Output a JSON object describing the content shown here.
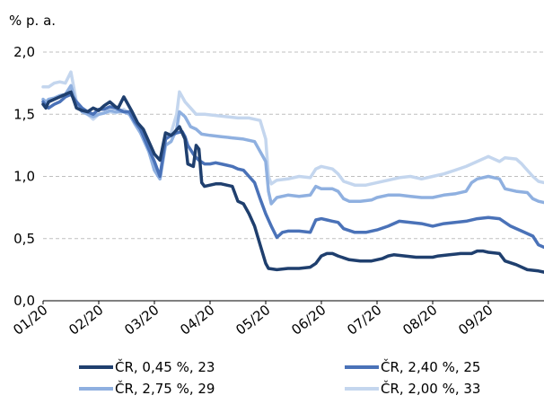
{
  "chart_data": {
    "type": "line",
    "ylabel": "% p. a.",
    "ylim": [
      0,
      2
    ],
    "y_ticks": [
      "0,0",
      "0,5",
      "1,0",
      "1,5",
      "2,0"
    ],
    "x_ticks": [
      "01/20",
      "02/20",
      "03/20",
      "04/20",
      "05/20",
      "06/20",
      "07/20",
      "08/20",
      "09/20"
    ],
    "x_tick_months": [
      1,
      2,
      3,
      4,
      5,
      6,
      7,
      8,
      9
    ],
    "x_range_months": [
      1,
      10.0
    ],
    "grid": true,
    "legend_position": "bottom",
    "series": [
      {
        "name": "ČR, 0,45 %, 23",
        "color": "#1f3f6e",
        "points": [
          [
            1.0,
            1.58
          ],
          [
            1.05,
            1.55
          ],
          [
            1.1,
            1.6
          ],
          [
            1.2,
            1.62
          ],
          [
            1.3,
            1.64
          ],
          [
            1.4,
            1.66
          ],
          [
            1.5,
            1.68
          ],
          [
            1.6,
            1.55
          ],
          [
            1.7,
            1.53
          ],
          [
            1.8,
            1.52
          ],
          [
            1.9,
            1.55
          ],
          [
            2.0,
            1.53
          ],
          [
            2.1,
            1.57
          ],
          [
            2.2,
            1.6
          ],
          [
            2.3,
            1.56
          ],
          [
            2.35,
            1.55
          ],
          [
            2.45,
            1.64
          ],
          [
            2.5,
            1.6
          ],
          [
            2.6,
            1.52
          ],
          [
            2.7,
            1.43
          ],
          [
            2.8,
            1.38
          ],
          [
            2.9,
            1.28
          ],
          [
            3.0,
            1.18
          ],
          [
            3.1,
            1.13
          ],
          [
            3.2,
            1.35
          ],
          [
            3.3,
            1.33
          ],
          [
            3.35,
            1.35
          ],
          [
            3.45,
            1.4
          ],
          [
            3.55,
            1.3
          ],
          [
            3.6,
            1.1
          ],
          [
            3.7,
            1.08
          ],
          [
            3.75,
            1.25
          ],
          [
            3.8,
            1.22
          ],
          [
            3.85,
            0.95
          ],
          [
            3.9,
            0.92
          ],
          [
            4.0,
            0.93
          ],
          [
            4.1,
            0.94
          ],
          [
            4.2,
            0.94
          ],
          [
            4.3,
            0.93
          ],
          [
            4.4,
            0.92
          ],
          [
            4.5,
            0.8
          ],
          [
            4.6,
            0.78
          ],
          [
            4.7,
            0.7
          ],
          [
            4.8,
            0.6
          ],
          [
            4.9,
            0.45
          ],
          [
            5.0,
            0.3
          ],
          [
            5.05,
            0.26
          ],
          [
            5.2,
            0.25
          ],
          [
            5.4,
            0.26
          ],
          [
            5.6,
            0.26
          ],
          [
            5.8,
            0.27
          ],
          [
            5.9,
            0.3
          ],
          [
            6.0,
            0.36
          ],
          [
            6.1,
            0.38
          ],
          [
            6.2,
            0.38
          ],
          [
            6.3,
            0.36
          ],
          [
            6.5,
            0.33
          ],
          [
            6.7,
            0.32
          ],
          [
            6.9,
            0.32
          ],
          [
            7.0,
            0.33
          ],
          [
            7.1,
            0.34
          ],
          [
            7.2,
            0.36
          ],
          [
            7.3,
            0.37
          ],
          [
            7.5,
            0.36
          ],
          [
            7.7,
            0.35
          ],
          [
            7.9,
            0.35
          ],
          [
            8.0,
            0.35
          ],
          [
            8.1,
            0.36
          ],
          [
            8.3,
            0.37
          ],
          [
            8.5,
            0.38
          ],
          [
            8.7,
            0.38
          ],
          [
            8.8,
            0.4
          ],
          [
            8.9,
            0.4
          ],
          [
            9.0,
            0.39
          ],
          [
            9.2,
            0.38
          ],
          [
            9.3,
            0.32
          ],
          [
            9.5,
            0.29
          ],
          [
            9.7,
            0.25
          ],
          [
            9.9,
            0.24
          ],
          [
            10.0,
            0.23
          ]
        ]
      },
      {
        "name": "ČR, 2,40 %, 25",
        "color": "#4a72b8",
        "points": [
          [
            1.0,
            1.6
          ],
          [
            1.05,
            1.57
          ],
          [
            1.1,
            1.55
          ],
          [
            1.2,
            1.58
          ],
          [
            1.3,
            1.6
          ],
          [
            1.4,
            1.64
          ],
          [
            1.5,
            1.66
          ],
          [
            1.6,
            1.6
          ],
          [
            1.7,
            1.55
          ],
          [
            1.8,
            1.52
          ],
          [
            1.9,
            1.5
          ],
          [
            2.0,
            1.54
          ],
          [
            2.1,
            1.54
          ],
          [
            2.2,
            1.56
          ],
          [
            2.3,
            1.55
          ],
          [
            2.45,
            1.52
          ],
          [
            2.55,
            1.52
          ],
          [
            2.65,
            1.44
          ],
          [
            2.75,
            1.38
          ],
          [
            2.9,
            1.22
          ],
          [
            3.0,
            1.12
          ],
          [
            3.1,
            1.0
          ],
          [
            3.2,
            1.3
          ],
          [
            3.3,
            1.33
          ],
          [
            3.4,
            1.35
          ],
          [
            3.5,
            1.36
          ],
          [
            3.55,
            1.32
          ],
          [
            3.6,
            1.25
          ],
          [
            3.7,
            1.18
          ],
          [
            3.75,
            1.15
          ],
          [
            3.8,
            1.13
          ],
          [
            3.9,
            1.1
          ],
          [
            4.0,
            1.1
          ],
          [
            4.1,
            1.11
          ],
          [
            4.2,
            1.1
          ],
          [
            4.3,
            1.09
          ],
          [
            4.4,
            1.08
          ],
          [
            4.5,
            1.06
          ],
          [
            4.6,
            1.05
          ],
          [
            4.7,
            1.0
          ],
          [
            4.8,
            0.95
          ],
          [
            4.9,
            0.82
          ],
          [
            5.0,
            0.7
          ],
          [
            5.1,
            0.6
          ],
          [
            5.2,
            0.51
          ],
          [
            5.3,
            0.55
          ],
          [
            5.4,
            0.56
          ],
          [
            5.6,
            0.56
          ],
          [
            5.8,
            0.55
          ],
          [
            5.9,
            0.65
          ],
          [
            6.0,
            0.66
          ],
          [
            6.1,
            0.65
          ],
          [
            6.2,
            0.64
          ],
          [
            6.3,
            0.63
          ],
          [
            6.4,
            0.58
          ],
          [
            6.6,
            0.55
          ],
          [
            6.8,
            0.55
          ],
          [
            7.0,
            0.57
          ],
          [
            7.2,
            0.6
          ],
          [
            7.4,
            0.64
          ],
          [
            7.6,
            0.63
          ],
          [
            7.8,
            0.62
          ],
          [
            8.0,
            0.6
          ],
          [
            8.2,
            0.62
          ],
          [
            8.4,
            0.63
          ],
          [
            8.6,
            0.64
          ],
          [
            8.8,
            0.66
          ],
          [
            9.0,
            0.67
          ],
          [
            9.2,
            0.66
          ],
          [
            9.4,
            0.6
          ],
          [
            9.6,
            0.56
          ],
          [
            9.8,
            0.52
          ],
          [
            9.9,
            0.45
          ],
          [
            10.0,
            0.43
          ]
        ]
      },
      {
        "name": "ČR, 2,75 %, 29",
        "color": "#8fb0e0",
        "points": [
          [
            1.0,
            1.62
          ],
          [
            1.05,
            1.6
          ],
          [
            1.1,
            1.62
          ],
          [
            1.2,
            1.63
          ],
          [
            1.3,
            1.65
          ],
          [
            1.4,
            1.66
          ],
          [
            1.5,
            1.73
          ],
          [
            1.6,
            1.58
          ],
          [
            1.7,
            1.52
          ],
          [
            1.8,
            1.5
          ],
          [
            1.9,
            1.48
          ],
          [
            2.0,
            1.5
          ],
          [
            2.1,
            1.51
          ],
          [
            2.2,
            1.53
          ],
          [
            2.3,
            1.52
          ],
          [
            2.45,
            1.52
          ],
          [
            2.55,
            1.5
          ],
          [
            2.65,
            1.42
          ],
          [
            2.75,
            1.35
          ],
          [
            2.9,
            1.2
          ],
          [
            3.0,
            1.05
          ],
          [
            3.1,
            0.98
          ],
          [
            3.2,
            1.25
          ],
          [
            3.3,
            1.28
          ],
          [
            3.4,
            1.38
          ],
          [
            3.45,
            1.52
          ],
          [
            3.55,
            1.48
          ],
          [
            3.65,
            1.4
          ],
          [
            3.75,
            1.38
          ],
          [
            3.85,
            1.34
          ],
          [
            4.0,
            1.33
          ],
          [
            4.2,
            1.32
          ],
          [
            4.4,
            1.31
          ],
          [
            4.6,
            1.3
          ],
          [
            4.8,
            1.28
          ],
          [
            5.0,
            1.12
          ],
          [
            5.05,
            0.88
          ],
          [
            5.1,
            0.78
          ],
          [
            5.2,
            0.83
          ],
          [
            5.4,
            0.85
          ],
          [
            5.6,
            0.84
          ],
          [
            5.8,
            0.85
          ],
          [
            5.9,
            0.92
          ],
          [
            6.0,
            0.9
          ],
          [
            6.2,
            0.9
          ],
          [
            6.3,
            0.88
          ],
          [
            6.4,
            0.82
          ],
          [
            6.5,
            0.8
          ],
          [
            6.7,
            0.8
          ],
          [
            6.9,
            0.81
          ],
          [
            7.0,
            0.83
          ],
          [
            7.2,
            0.85
          ],
          [
            7.4,
            0.85
          ],
          [
            7.6,
            0.84
          ],
          [
            7.8,
            0.83
          ],
          [
            8.0,
            0.83
          ],
          [
            8.2,
            0.85
          ],
          [
            8.4,
            0.86
          ],
          [
            8.6,
            0.88
          ],
          [
            8.7,
            0.95
          ],
          [
            8.8,
            0.98
          ],
          [
            9.0,
            1.0
          ],
          [
            9.2,
            0.98
          ],
          [
            9.3,
            0.9
          ],
          [
            9.5,
            0.88
          ],
          [
            9.7,
            0.87
          ],
          [
            9.8,
            0.82
          ],
          [
            9.9,
            0.8
          ],
          [
            10.0,
            0.79
          ]
        ]
      },
      {
        "name": "ČR, 2,00 %, 33",
        "color": "#c4d6ee",
        "points": [
          [
            1.0,
            1.72
          ],
          [
            1.1,
            1.72
          ],
          [
            1.2,
            1.75
          ],
          [
            1.3,
            1.76
          ],
          [
            1.4,
            1.75
          ],
          [
            1.5,
            1.84
          ],
          [
            1.6,
            1.6
          ],
          [
            1.7,
            1.55
          ],
          [
            1.8,
            1.5
          ],
          [
            1.9,
            1.46
          ],
          [
            2.0,
            1.5
          ],
          [
            2.1,
            1.51
          ],
          [
            2.2,
            1.52
          ],
          [
            2.3,
            1.51
          ],
          [
            2.45,
            1.54
          ],
          [
            2.55,
            1.5
          ],
          [
            2.65,
            1.44
          ],
          [
            2.75,
            1.35
          ],
          [
            2.9,
            1.2
          ],
          [
            3.0,
            1.05
          ],
          [
            3.1,
            0.98
          ],
          [
            3.2,
            1.3
          ],
          [
            3.3,
            1.35
          ],
          [
            3.4,
            1.5
          ],
          [
            3.45,
            1.68
          ],
          [
            3.55,
            1.6
          ],
          [
            3.65,
            1.55
          ],
          [
            3.75,
            1.5
          ],
          [
            3.9,
            1.5
          ],
          [
            4.1,
            1.49
          ],
          [
            4.3,
            1.48
          ],
          [
            4.5,
            1.47
          ],
          [
            4.7,
            1.47
          ],
          [
            4.9,
            1.45
          ],
          [
            5.0,
            1.3
          ],
          [
            5.05,
            1.0
          ],
          [
            5.1,
            0.94
          ],
          [
            5.2,
            0.97
          ],
          [
            5.4,
            0.98
          ],
          [
            5.6,
            1.0
          ],
          [
            5.8,
            0.99
          ],
          [
            5.9,
            1.06
          ],
          [
            6.0,
            1.08
          ],
          [
            6.2,
            1.06
          ],
          [
            6.3,
            1.02
          ],
          [
            6.4,
            0.96
          ],
          [
            6.6,
            0.93
          ],
          [
            6.8,
            0.93
          ],
          [
            7.0,
            0.95
          ],
          [
            7.2,
            0.97
          ],
          [
            7.4,
            0.99
          ],
          [
            7.6,
            1.0
          ],
          [
            7.8,
            0.98
          ],
          [
            8.0,
            1.0
          ],
          [
            8.2,
            1.02
          ],
          [
            8.4,
            1.05
          ],
          [
            8.6,
            1.08
          ],
          [
            8.8,
            1.12
          ],
          [
            9.0,
            1.16
          ],
          [
            9.2,
            1.12
          ],
          [
            9.3,
            1.15
          ],
          [
            9.5,
            1.14
          ],
          [
            9.6,
            1.1
          ],
          [
            9.7,
            1.05
          ],
          [
            9.8,
            1.0
          ],
          [
            9.9,
            0.96
          ],
          [
            10.0,
            0.95
          ]
        ]
      }
    ]
  }
}
